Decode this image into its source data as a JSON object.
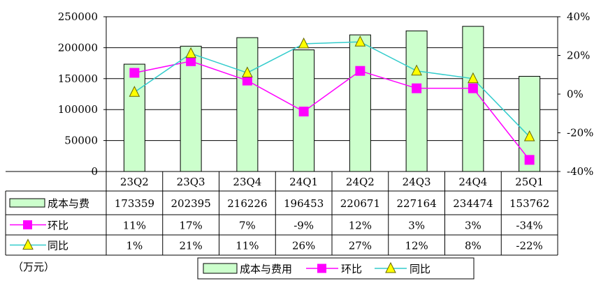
{
  "chart_data": {
    "type": "bar",
    "categories": [
      "23Q2",
      "23Q3",
      "23Q4",
      "24Q1",
      "24Q2",
      "24Q3",
      "24Q4",
      "25Q1"
    ],
    "series": [
      {
        "name": "成本与费用",
        "table_label": "成本与费",
        "kind": "bar",
        "axis": "left",
        "values": [
          173359,
          202395,
          216226,
          196453,
          220671,
          227164,
          234474,
          153762
        ],
        "labels": [
          "173359",
          "202395",
          "216226",
          "196453",
          "220671",
          "227164",
          "234474",
          "153762"
        ],
        "color": "#ccffcc"
      },
      {
        "name": "环比",
        "table_label": "环比",
        "kind": "line",
        "axis": "right",
        "marker": "square",
        "values": [
          11,
          17,
          7,
          -9,
          12,
          3,
          3,
          -34
        ],
        "labels": [
          "11%",
          "17%",
          "7%",
          "-9%",
          "12%",
          "3%",
          "3%",
          "-34%"
        ],
        "color": "#ff00ff"
      },
      {
        "name": "同比",
        "table_label": "同比",
        "kind": "line",
        "axis": "right",
        "marker": "triangle",
        "values": [
          1,
          21,
          11,
          26,
          27,
          12,
          8,
          -22
        ],
        "labels": [
          "1%",
          "21%",
          "11%",
          "26%",
          "27%",
          "12%",
          "8%",
          "-22%"
        ],
        "color": "#33cccc",
        "marker_color": "#ffff00"
      }
    ],
    "left_axis": {
      "ylim": [
        0,
        250000
      ],
      "ticks": [
        0,
        50000,
        100000,
        150000,
        200000,
        250000
      ],
      "tick_labels": [
        "0",
        "50000",
        "100000",
        "150000",
        "200000",
        "250000"
      ]
    },
    "right_axis": {
      "ylim": [
        -40,
        40
      ],
      "ticks": [
        -40,
        -20,
        0,
        20,
        40
      ],
      "tick_labels": [
        "-40%",
        "-20%",
        "0%",
        "20%",
        "40%"
      ]
    },
    "unit_label": "（万元）",
    "grid": true,
    "legend_placement": "bottom",
    "data_table": true
  }
}
